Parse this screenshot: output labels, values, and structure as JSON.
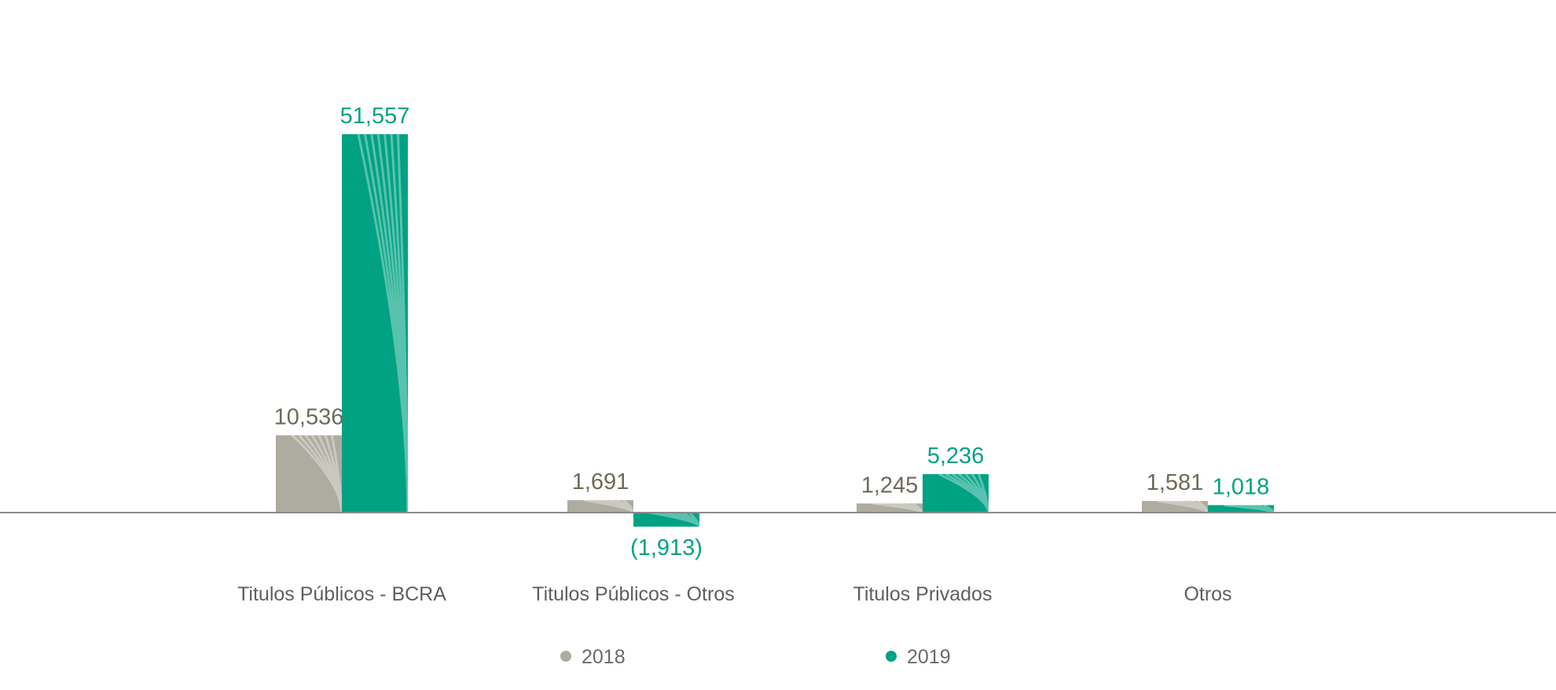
{
  "chart_data": {
    "type": "bar",
    "categories": [
      "Titulos Públicos - BCRA",
      "Titulos Públicos - Otros",
      "Titulos Privados",
      "Otros"
    ],
    "series": [
      {
        "name": "2018",
        "color": "#aeaca0",
        "label_color": "#6e6a58",
        "values": [
          10536,
          1691,
          1245,
          1581
        ],
        "labels": [
          "10,536",
          "1,691",
          "1,245",
          "1,581"
        ]
      },
      {
        "name": "2019",
        "color": "#00a283",
        "label_color": "#00a283",
        "values": [
          51557,
          -1913,
          5236,
          1018
        ],
        "labels": [
          "51,557",
          "(1,913)",
          "5,236",
          "1,018"
        ]
      }
    ],
    "legend_position": "bottom",
    "grid": false,
    "axis_color": "#8a8a8a"
  }
}
